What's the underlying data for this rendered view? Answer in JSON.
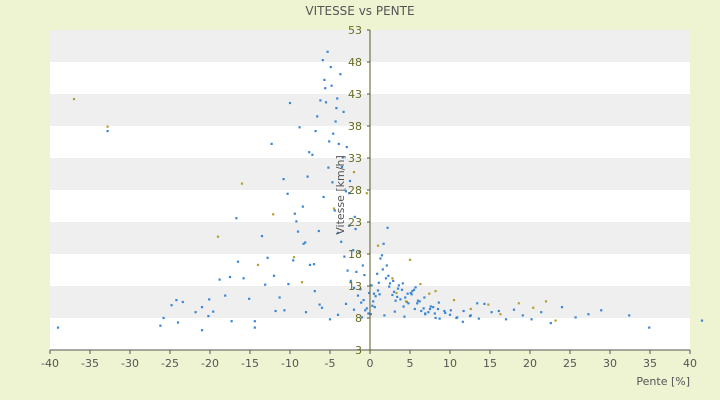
{
  "chart_data": {
    "type": "scatter",
    "title": "VITESSE vs PENTE",
    "xlabel": "Pente [%]",
    "ylabel": "Vitesse [km/h]",
    "xlim": [
      -40,
      40
    ],
    "ylim": [
      3,
      53
    ],
    "x_ticks": [
      -40,
      -35,
      -30,
      -25,
      -20,
      -15,
      -10,
      -5,
      0,
      5,
      10,
      15,
      20,
      25,
      30,
      35,
      40
    ],
    "y_ticks": [
      3,
      8,
      13,
      18,
      23,
      28,
      33,
      38,
      43,
      48,
      53
    ],
    "grid": "horizontal alternating bands",
    "legend": "none",
    "colors": {
      "series": "#3a86d4",
      "highlight": "#b0a030",
      "axis": "#555555",
      "band": "#efefef",
      "plot": "#ffffff"
    },
    "series": [
      {
        "color": "#3a86d4",
        "x": [
          -39.0,
          -26.2,
          -25.8,
          -24.8,
          -24.2,
          -23.4,
          -21.8,
          -21.0,
          -20.1,
          -19.6,
          -18.8,
          -18.1,
          -17.3,
          -16.5,
          -15.8,
          -15.1,
          -14.4,
          -13.5,
          -12.8,
          -12.0,
          -11.3,
          -10.7,
          -10.2,
          -9.6,
          -9.0,
          -8.4,
          -7.8,
          -7.2,
          -6.8,
          -6.2,
          -5.7,
          -5.3,
          -4.8,
          -4.3,
          -3.9,
          -3.5,
          -3.0,
          -2.6,
          -2.1,
          -1.7,
          -1.2,
          -0.8,
          -0.4,
          0.1,
          0.5,
          0.9,
          1.3,
          1.7,
          2.1,
          2.5,
          3.0,
          3.4,
          3.8,
          4.2,
          4.6,
          5.1,
          5.5,
          5.9,
          6.4,
          6.9,
          7.5,
          8.1,
          8.7,
          9.4,
          10.1,
          10.9,
          11.7,
          12.6,
          13.4,
          14.3,
          15.2,
          16.1,
          17.0,
          18.0,
          19.1,
          20.2,
          21.4,
          22.6,
          24.0,
          25.7,
          27.3,
          28.9,
          32.4,
          34.9,
          41.5,
          -32.8,
          -24.0,
          -21.0,
          -20.2,
          -17.5,
          -16.7,
          -14.4,
          -13.1,
          -11.8,
          -10.3,
          -9.2,
          -8.3,
          -7.5,
          -6.9,
          -6.3,
          -5.9,
          -5.5,
          -5.1,
          -4.7,
          -4.4,
          -4.0,
          -3.6,
          -3.2,
          -2.8,
          -2.4,
          -2.0,
          -1.5,
          -1.1,
          -0.6,
          -0.2,
          0.3,
          0.7,
          1.1,
          1.6,
          2.0,
          2.4,
          2.8,
          3.2,
          3.6,
          4.0,
          4.4,
          4.8,
          5.2,
          5.7,
          6.2,
          6.7,
          7.3,
          7.9,
          8.6,
          9.3,
          10.0,
          10.8,
          11.6,
          12.5,
          13.6,
          -12.3,
          -10.8,
          -9.4,
          -8.1,
          -7.0,
          -6.4,
          -5.8,
          -5.2,
          -4.6,
          -4.1,
          -3.7,
          -3.3,
          -2.9,
          -2.5,
          -1.9,
          -1.3,
          -0.7,
          -0.1,
          0.4,
          1.0,
          1.5,
          2.2,
          2.9,
          3.5,
          4.1,
          4.7,
          5.3,
          6.0,
          6.8,
          7.6,
          8.5,
          -10.0,
          -8.8,
          -7.6,
          -6.6,
          -5.6,
          -4.9,
          -4.2,
          -3.4,
          -2.6,
          -1.8,
          -0.9,
          0.2,
          1.2,
          2.3,
          -8.0,
          -6.0,
          -5.0,
          -4.0,
          -3.0,
          -2.0,
          -1.0,
          0.6,
          1.8,
          3.1,
          4.3,
          5.6,
          6.9,
          8.2
        ],
        "y": [
          6.5,
          6.8,
          8.0,
          10.0,
          10.8,
          10.5,
          8.9,
          6.1,
          10.9,
          9.0,
          14.0,
          11.5,
          7.5,
          16.8,
          14.2,
          11.0,
          7.5,
          20.8,
          17.4,
          14.6,
          11.2,
          9.2,
          13.3,
          17.0,
          21.5,
          25.4,
          30.1,
          33.5,
          37.2,
          42.0,
          45.2,
          49.6,
          44.3,
          38.7,
          35.2,
          31.6,
          27.8,
          22.4,
          18.6,
          15.2,
          12.5,
          10.8,
          9.5,
          8.6,
          11.8,
          14.9,
          17.3,
          19.6,
          16.2,
          13.4,
          12.1,
          11.3,
          10.9,
          9.8,
          10.5,
          11.9,
          12.4,
          10.3,
          9.1,
          8.6,
          9.4,
          8.7,
          7.9,
          8.8,
          9.2,
          8.1,
          9.1,
          8.4,
          10.3,
          10.2,
          8.9,
          9.1,
          7.8,
          9.3,
          8.4,
          7.8,
          8.9,
          7.2,
          9.7,
          8.1,
          8.6,
          9.2,
          8.4,
          6.5,
          7.6,
          37.2,
          7.3,
          9.7,
          8.3,
          14.4,
          23.6,
          6.5,
          13.2,
          9.1,
          27.4,
          23.1,
          19.6,
          16.3,
          12.2,
          10.1,
          48.3,
          41.7,
          35.6,
          29.2,
          24.8,
          21.3,
          19.9,
          17.6,
          15.4,
          13.8,
          12.7,
          11.5,
          10.4,
          9.2,
          8.7,
          9.9,
          11.4,
          13.5,
          15.6,
          14.2,
          12.9,
          11.6,
          10.7,
          13.1,
          12.4,
          11.2,
          10.3,
          11.7,
          12.8,
          10.6,
          9.5,
          8.9,
          9.7,
          10.4,
          9.1,
          8.5,
          8.0,
          7.4,
          8.3,
          7.9,
          35.2,
          29.7,
          24.3,
          19.8,
          16.4,
          21.6,
          26.9,
          31.5,
          36.8,
          42.3,
          46.1,
          40.2,
          34.7,
          29.4,
          23.8,
          18.3,
          14.7,
          11.9,
          10.6,
          12.3,
          17.8,
          22.1,
          13.8,
          12.6,
          13.4,
          11.8,
          12.2,
          10.7,
          11.2,
          9.8,
          9.4,
          41.6,
          37.8,
          33.9,
          39.5,
          43.9,
          47.2,
          40.8,
          33.1,
          27.5,
          21.9,
          16.2,
          13.1,
          11.7,
          14.6,
          8.9,
          9.6,
          7.8,
          8.5,
          10.2,
          9.3,
          8.1,
          9.7,
          8.4,
          9.0,
          8.2,
          9.4,
          8.7,
          8.0
        ]
      },
      {
        "color": "#b0a030",
        "x": [
          -37.0,
          -32.8,
          -19.0,
          -16.0,
          -14.0,
          -12.1,
          -9.5,
          -8.5,
          -4.5,
          -2.0,
          -0.4,
          1.0,
          2.8,
          3.3,
          4.5,
          5.0,
          6.3,
          7.4,
          8.2,
          10.5,
          12.6,
          14.8,
          16.3,
          18.6,
          20.4,
          22.0,
          23.2
        ],
        "y": [
          42.2,
          37.9,
          20.7,
          29.0,
          16.3,
          24.2,
          17.5,
          13.6,
          25.1,
          30.8,
          27.5,
          19.3,
          14.2,
          11.9,
          10.6,
          17.1,
          13.3,
          11.8,
          12.2,
          10.8,
          9.4,
          10.1,
          8.6,
          10.3,
          9.6,
          10.6,
          7.6
        ]
      }
    ]
  }
}
